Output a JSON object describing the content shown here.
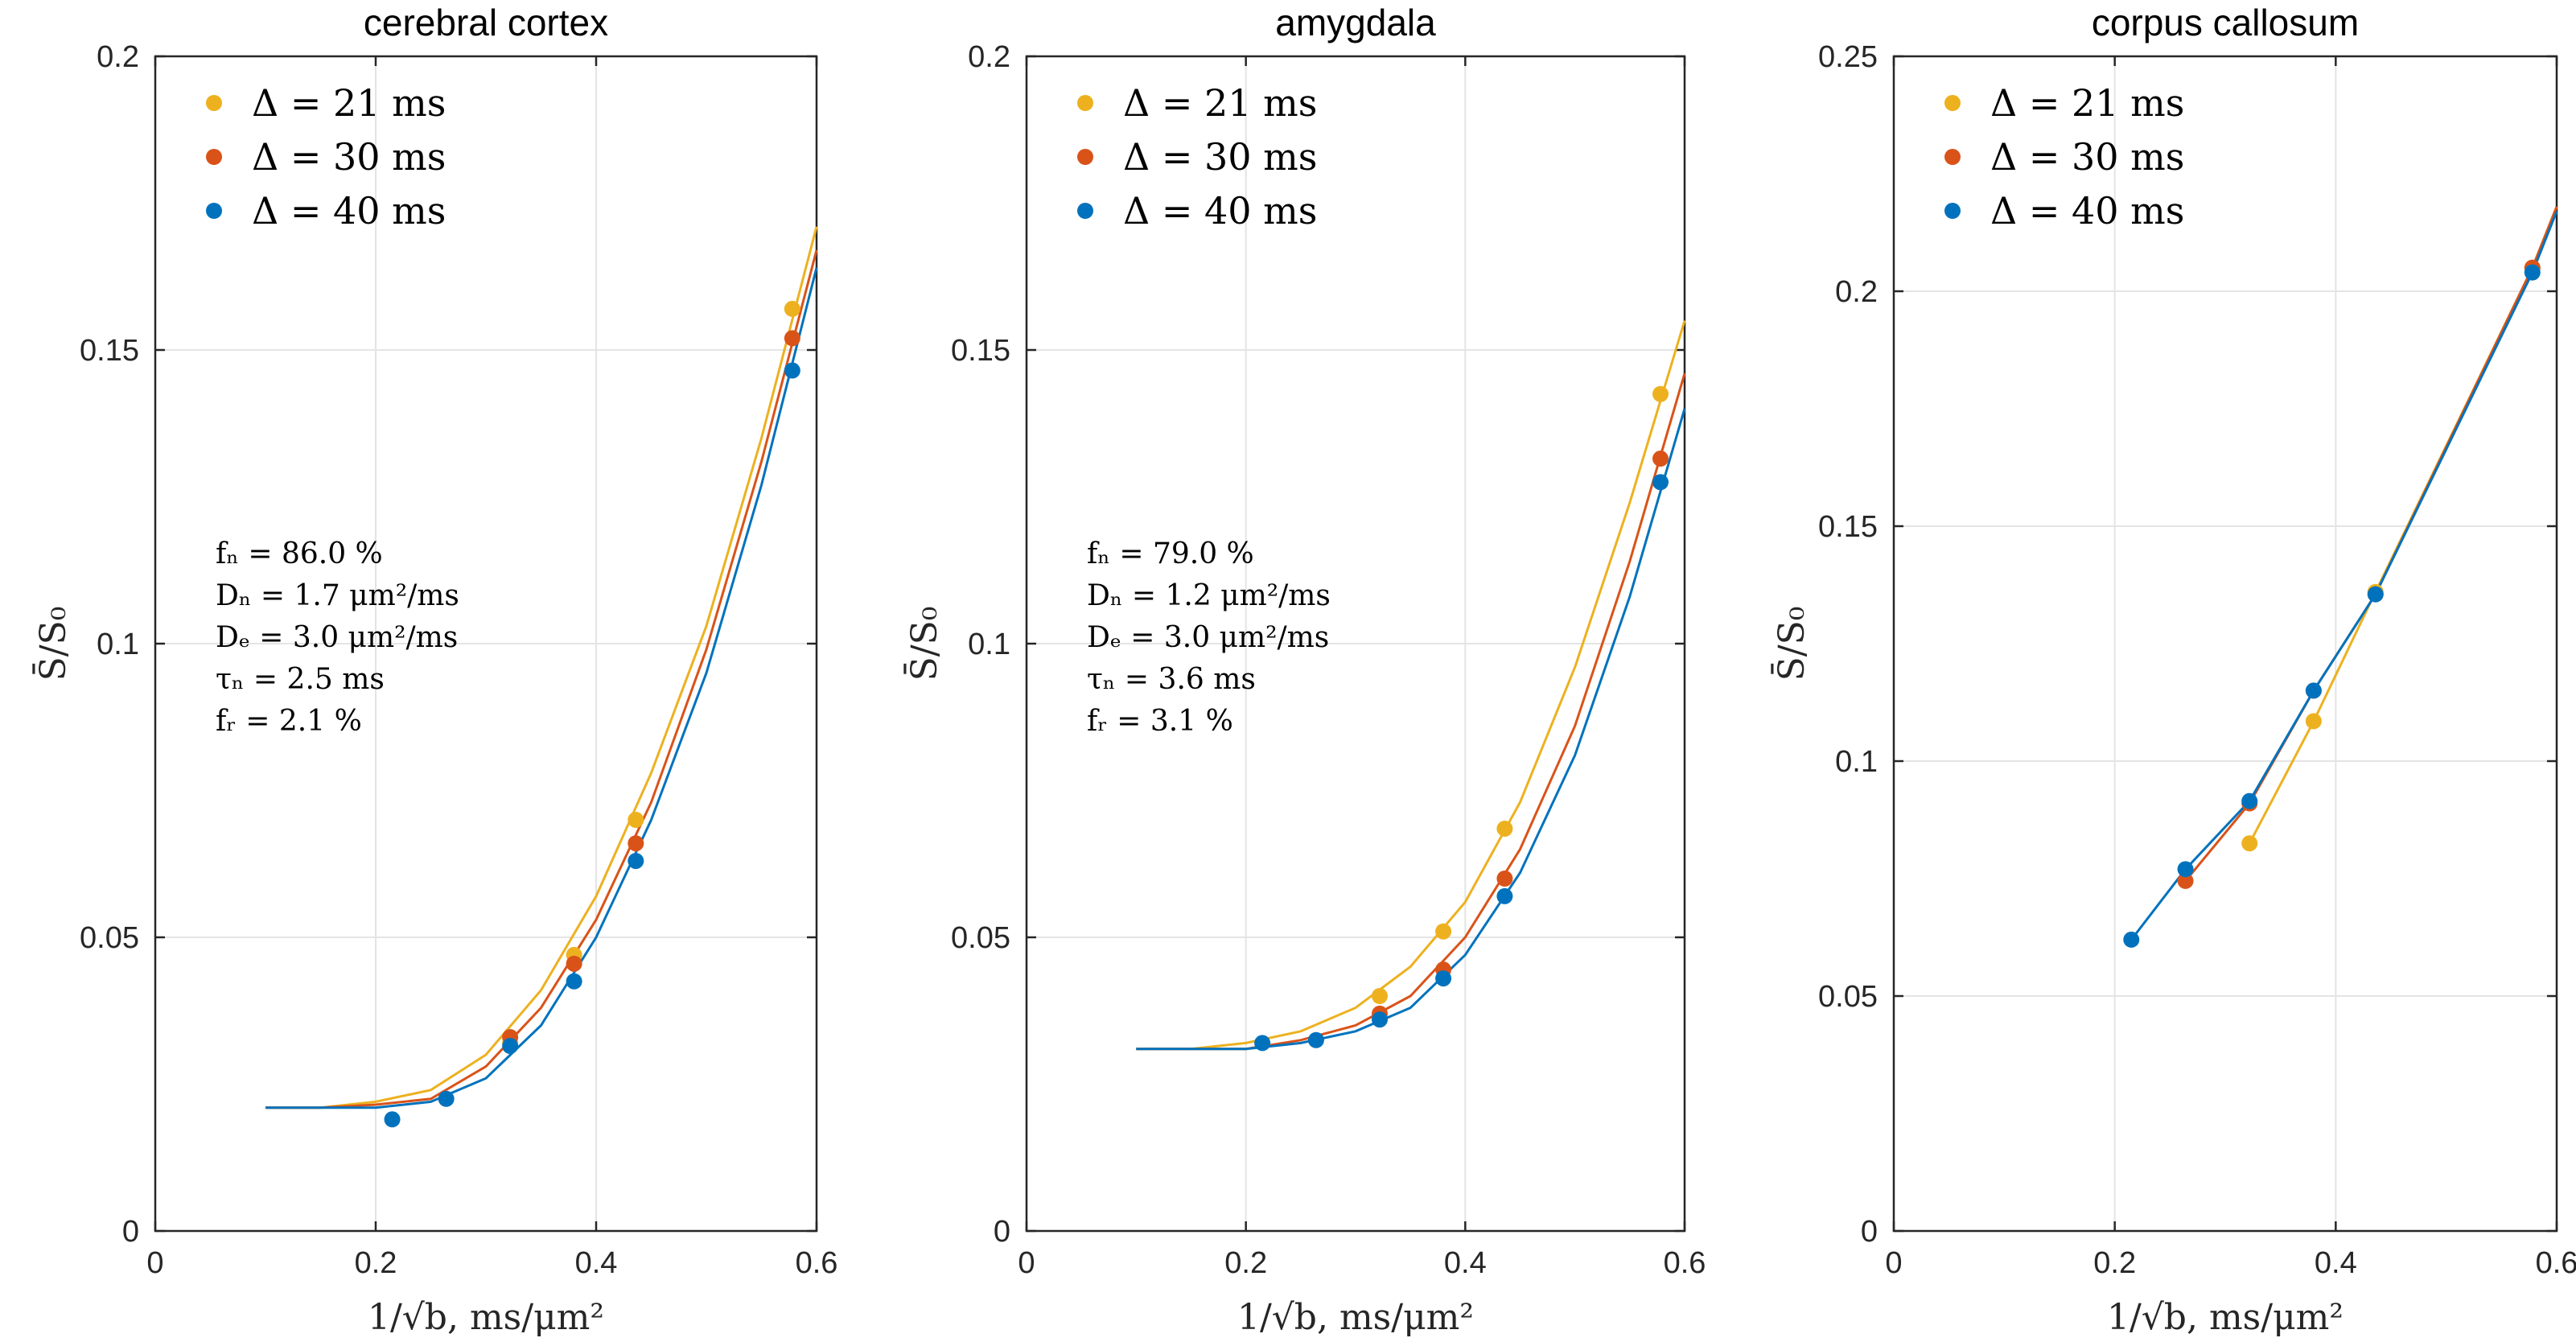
{
  "chart_data": [
    {
      "type": "line",
      "title": "cerebral cortex",
      "xlabel": "1/√b, ms/μm²",
      "ylabel": "S̄/S₀",
      "xlim": [
        0,
        0.6
      ],
      "ylim": [
        0,
        0.2
      ],
      "xticks": [
        0,
        0.2,
        0.4,
        0.6
      ],
      "yticks": [
        0,
        0.05,
        0.1,
        0.15,
        0.2
      ],
      "ytick_labels": [
        "0",
        "0.05",
        "0.1",
        "0.15",
        "0.2"
      ],
      "legend": [
        "Δ = 21 ms",
        "Δ = 30 ms",
        "Δ = 40 ms"
      ],
      "annotation": [
        "fₙ = 86.0 %",
        "Dₙ = 1.7 μm²/ms",
        "Dₑ = 3.0 μm²/ms",
        "τₙ = 2.5 ms",
        "fᵣ = 2.1 %"
      ],
      "series": [
        {
          "name": "Δ = 21 ms",
          "color": "#EDB120",
          "points": {
            "x": [
              0.322,
              0.38,
              0.436,
              0.578
            ],
            "y": [
              0.032,
              0.047,
              0.07,
              0.157
            ]
          },
          "curve": {
            "x": [
              0.1,
              0.15,
              0.2,
              0.25,
              0.3,
              0.35,
              0.4,
              0.45,
              0.5,
              0.55,
              0.6
            ],
            "y": [
              0.021,
              0.021,
              0.022,
              0.024,
              0.03,
              0.041,
              0.057,
              0.078,
              0.103,
              0.135,
              0.171
            ]
          }
        },
        {
          "name": "Δ = 30 ms",
          "color": "#D95319",
          "points": {
            "x": [
              0.322,
              0.38,
              0.436,
              0.578
            ],
            "y": [
              0.033,
              0.0455,
              0.066,
              0.152
            ]
          },
          "curve": {
            "x": [
              0.1,
              0.15,
              0.2,
              0.25,
              0.3,
              0.35,
              0.4,
              0.45,
              0.5,
              0.55,
              0.6
            ],
            "y": [
              0.021,
              0.021,
              0.0215,
              0.0225,
              0.028,
              0.038,
              0.053,
              0.073,
              0.099,
              0.131,
              0.167
            ]
          }
        },
        {
          "name": "Δ = 40 ms",
          "color": "#0072BD",
          "points": {
            "x": [
              0.215,
              0.264,
              0.322,
              0.38,
              0.436,
              0.578
            ],
            "y": [
              0.019,
              0.0225,
              0.0315,
              0.0425,
              0.063,
              0.1465
            ]
          },
          "curve": {
            "x": [
              0.1,
              0.15,
              0.2,
              0.25,
              0.3,
              0.35,
              0.4,
              0.45,
              0.5,
              0.55,
              0.6
            ],
            "y": [
              0.021,
              0.021,
              0.021,
              0.022,
              0.026,
              0.035,
              0.05,
              0.07,
              0.095,
              0.127,
              0.164
            ]
          }
        }
      ]
    },
    {
      "type": "line",
      "title": "amygdala",
      "xlabel": "1/√b, ms/μm²",
      "ylabel": "S̄/S₀",
      "xlim": [
        0,
        0.6
      ],
      "ylim": [
        0,
        0.2
      ],
      "xticks": [
        0,
        0.2,
        0.4,
        0.6
      ],
      "yticks": [
        0,
        0.05,
        0.1,
        0.15,
        0.2
      ],
      "ytick_labels": [
        "0",
        "0.05",
        "0.1",
        "0.15",
        "0.2"
      ],
      "legend": [
        "Δ = 21 ms",
        "Δ = 30 ms",
        "Δ = 40 ms"
      ],
      "annotation": [
        "fₙ = 79.0 %",
        "Dₙ = 1.2 μm²/ms",
        "Dₑ = 3.0 μm²/ms",
        "τₙ = 3.6 ms",
        "fᵣ = 3.1 %"
      ],
      "series": [
        {
          "name": "Δ = 21 ms",
          "color": "#EDB120",
          "points": {
            "x": [
              0.322,
              0.38,
              0.436,
              0.578
            ],
            "y": [
              0.04,
              0.051,
              0.0685,
              0.1425
            ]
          },
          "curve": {
            "x": [
              0.1,
              0.15,
              0.2,
              0.25,
              0.3,
              0.35,
              0.4,
              0.45,
              0.5,
              0.55,
              0.6
            ],
            "y": [
              0.031,
              0.031,
              0.032,
              0.034,
              0.038,
              0.045,
              0.056,
              0.073,
              0.096,
              0.124,
              0.155
            ]
          }
        },
        {
          "name": "Δ = 30 ms",
          "color": "#D95319",
          "points": {
            "x": [
              0.322,
              0.38,
              0.436,
              0.578
            ],
            "y": [
              0.037,
              0.0445,
              0.06,
              0.1315
            ]
          },
          "curve": {
            "x": [
              0.1,
              0.15,
              0.2,
              0.25,
              0.3,
              0.35,
              0.4,
              0.45,
              0.5,
              0.55,
              0.6
            ],
            "y": [
              0.031,
              0.031,
              0.031,
              0.0325,
              0.035,
              0.04,
              0.05,
              0.065,
              0.086,
              0.114,
              0.146
            ]
          }
        },
        {
          "name": "Δ = 40 ms",
          "color": "#0072BD",
          "points": {
            "x": [
              0.215,
              0.264,
              0.322,
              0.38,
              0.436,
              0.578
            ],
            "y": [
              0.032,
              0.0325,
              0.036,
              0.043,
              0.057,
              0.1275
            ]
          },
          "curve": {
            "x": [
              0.1,
              0.15,
              0.2,
              0.25,
              0.3,
              0.35,
              0.4,
              0.45,
              0.5,
              0.55,
              0.6
            ],
            "y": [
              0.031,
              0.031,
              0.031,
              0.032,
              0.034,
              0.038,
              0.047,
              0.061,
              0.081,
              0.108,
              0.14
            ]
          }
        }
      ]
    },
    {
      "type": "line",
      "title": "corpus callosum",
      "xlabel": "1/√b, ms/μm²",
      "ylabel": "S̄/S₀",
      "xlim": [
        0,
        0.6
      ],
      "ylim": [
        0,
        0.25
      ],
      "xticks": [
        0,
        0.2,
        0.4,
        0.6
      ],
      "yticks": [
        0,
        0.05,
        0.1,
        0.15,
        0.2,
        0.25
      ],
      "ytick_labels": [
        "0",
        "0.05",
        "0.1",
        "0.15",
        "0.2",
        "0.25"
      ],
      "legend": [
        "Δ = 21 ms",
        "Δ = 30 ms",
        "Δ = 40 ms"
      ],
      "annotation": [],
      "series": [
        {
          "name": "Δ = 21 ms",
          "color": "#EDB120",
          "points": {
            "x": [
              0.322,
              0.38,
              0.436,
              0.578
            ],
            "y": [
              0.0825,
              0.1085,
              0.136,
              0.205
            ]
          },
          "curve": {
            "x": [
              0.322,
              0.38,
              0.436,
              0.578,
              0.6
            ],
            "y": [
              0.0825,
              0.1085,
              0.136,
              0.205,
              0.218
            ]
          }
        },
        {
          "name": "Δ = 30 ms",
          "color": "#D95319",
          "points": {
            "x": [
              0.264,
              0.322,
              0.38,
              0.436,
              0.578
            ],
            "y": [
              0.0745,
              0.091,
              0.115,
              0.1355,
              0.205
            ]
          },
          "curve": {
            "x": [
              0.264,
              0.322,
              0.38,
              0.436,
              0.578,
              0.6
            ],
            "y": [
              0.0745,
              0.091,
              0.115,
              0.1355,
              0.205,
              0.218
            ]
          }
        },
        {
          "name": "Δ = 40 ms",
          "color": "#0072BD",
          "points": {
            "x": [
              0.215,
              0.264,
              0.322,
              0.38,
              0.436,
              0.578
            ],
            "y": [
              0.062,
              0.077,
              0.0915,
              0.115,
              0.1355,
              0.204
            ]
          },
          "curve": {
            "x": [
              0.215,
              0.264,
              0.322,
              0.38,
              0.436,
              0.578,
              0.6
            ],
            "y": [
              0.062,
              0.077,
              0.0915,
              0.115,
              0.1355,
              0.204,
              0.217
            ]
          }
        }
      ]
    }
  ]
}
